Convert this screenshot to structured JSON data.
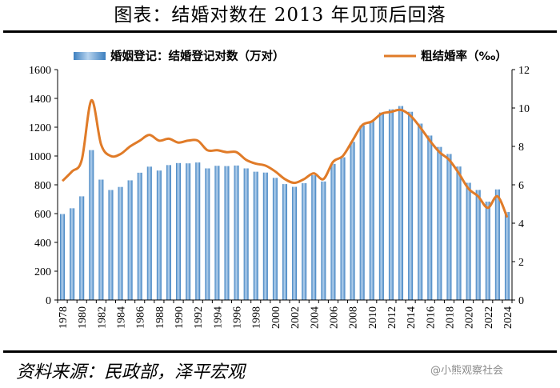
{
  "page": {
    "title": "图表：结婚对数在 2013 年见顶后回落",
    "source": "资料来源：民政部，泽平宏观",
    "watermark": "@小熊观察社会"
  },
  "colors": {
    "bar": "#3c7fbf",
    "bar_light": "#b7d3ee",
    "line": "#e07b28"
  },
  "chart_data": {
    "type": "bar",
    "title": "图表：结婚对数在 2013 年见顶后回落",
    "categories": [
      "1978",
      "1979",
      "1980",
      "1981",
      "1982",
      "1983",
      "1984",
      "1985",
      "1986",
      "1987",
      "1988",
      "1989",
      "1990",
      "1991",
      "1992",
      "1993",
      "1994",
      "1995",
      "1996",
      "1997",
      "1998",
      "1999",
      "2000",
      "2001",
      "2002",
      "2003",
      "2004",
      "2005",
      "2006",
      "2007",
      "2008",
      "2009",
      "2010",
      "2011",
      "2012",
      "2013",
      "2014",
      "2015",
      "2016",
      "2017",
      "2018",
      "2019",
      "2020",
      "2021",
      "2022",
      "2023",
      "2024"
    ],
    "x_tick_labels": [
      "1978",
      "1980",
      "1982",
      "1984",
      "1986",
      "1988",
      "1990",
      "1992",
      "1994",
      "1996",
      "1998",
      "2000",
      "2002",
      "2004",
      "2006",
      "2008",
      "2010",
      "2012",
      "2014",
      "2016",
      "2018",
      "2020",
      "2022",
      "2024"
    ],
    "legend_position": "top",
    "series": [
      {
        "name": "婚姻登记：结婚登记对数（万对）",
        "type": "bar",
        "axis": "left",
        "values": [
          597,
          637,
          720,
          1041,
          836,
          764,
          785,
          831,
          884,
          926,
          899,
          937,
          951,
          949,
          955,
          914,
          932,
          930,
          934,
          914,
          891,
          885,
          848,
          805,
          786,
          811,
          867,
          823,
          945,
          991,
          1098,
          1212,
          1241,
          1302,
          1324,
          1347,
          1307,
          1225,
          1142,
          1063,
          1014,
          927,
          814,
          764,
          683,
          768,
          611
        ]
      },
      {
        "name": "粗结婚率（‰）",
        "type": "line",
        "axis": "right",
        "values": [
          6.2,
          6.7,
          7.3,
          10.4,
          8.1,
          7.5,
          7.6,
          8.0,
          8.3,
          8.6,
          8.3,
          8.4,
          8.2,
          8.3,
          8.3,
          7.8,
          7.8,
          7.7,
          7.7,
          7.3,
          7.1,
          7.0,
          6.7,
          6.3,
          6.1,
          6.3,
          6.6,
          6.3,
          7.2,
          7.5,
          8.3,
          9.1,
          9.3,
          9.7,
          9.8,
          9.9,
          9.6,
          9.0,
          8.3,
          7.7,
          7.3,
          6.6,
          5.8,
          5.4,
          4.8,
          5.4,
          4.3
        ]
      }
    ],
    "y_left": {
      "min": 0,
      "max": 1600,
      "ticks": [
        0,
        200,
        400,
        600,
        800,
        1000,
        1200,
        1400,
        1600
      ]
    },
    "y_right": {
      "min": 0,
      "max": 12,
      "ticks": [
        0,
        2,
        4,
        6,
        8,
        10,
        12
      ]
    },
    "grid": false
  }
}
